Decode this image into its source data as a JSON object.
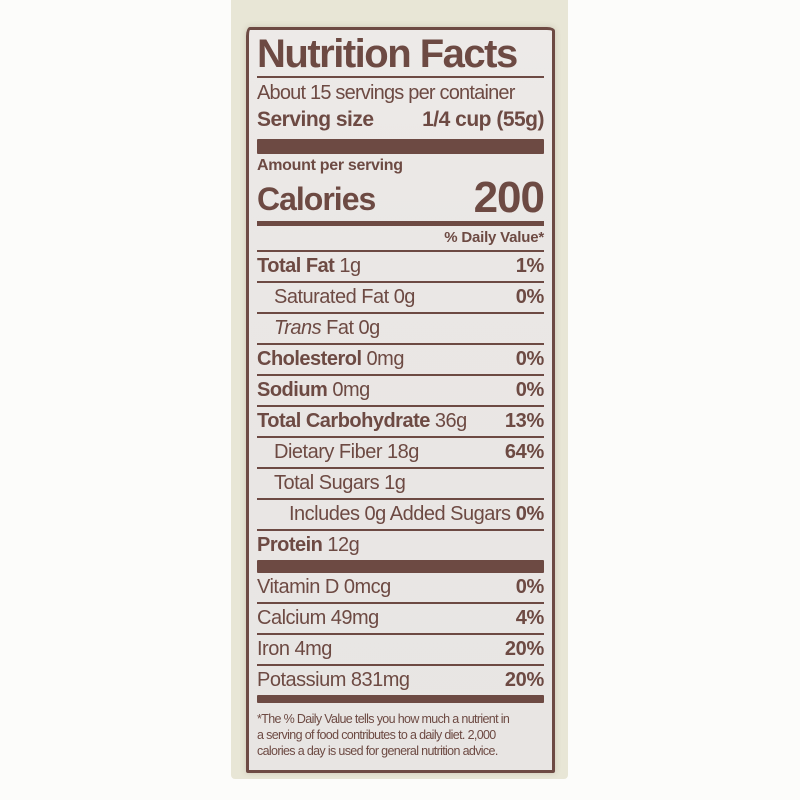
{
  "label": {
    "title": "Nutrition Facts",
    "servings_per_container": "About 15 servings per container",
    "serving_size_label": "Serving size",
    "serving_size_value": "1/4 cup (55g)",
    "amount_per_serving": "Amount per serving",
    "calories_label": "Calories",
    "calories_value": "200",
    "daily_value_header": "% Daily Value*",
    "nutrients": [
      {
        "name": "Total Fat",
        "amount": "1g",
        "dv": "1%",
        "bold": true,
        "indent": 0
      },
      {
        "name": "Saturated Fat",
        "amount": "0g",
        "dv": "0%",
        "bold": false,
        "indent": 1
      },
      {
        "name_italic": "Trans",
        "name": "Fat",
        "amount": "0g",
        "dv": "",
        "bold": false,
        "indent": 1
      },
      {
        "name": "Cholesterol",
        "amount": "0mg",
        "dv": "0%",
        "bold": true,
        "indent": 0
      },
      {
        "name": "Sodium",
        "amount": "0mg",
        "dv": "0%",
        "bold": true,
        "indent": 0
      },
      {
        "name": "Total Carbohydrate",
        "amount": "36g",
        "dv": "13%",
        "bold": true,
        "indent": 0
      },
      {
        "name": "Dietary Fiber",
        "amount": "18g",
        "dv": "64%",
        "bold": false,
        "indent": 1
      },
      {
        "name": "Total Sugars",
        "amount": "1g",
        "dv": "",
        "bold": false,
        "indent": 1
      },
      {
        "name": "Includes 0g Added Sugars",
        "amount": "",
        "dv": "0%",
        "bold": false,
        "indent": 2
      },
      {
        "name": "Protein",
        "amount": "12g",
        "dv": "",
        "bold": true,
        "indent": 0
      }
    ],
    "micronutrients": [
      {
        "name": "Vitamin D",
        "amount": "0mcg",
        "dv": "0%",
        "bold": false,
        "indent": 0
      },
      {
        "name": "Calcium",
        "amount": "49mg",
        "dv": "4%",
        "bold": false,
        "indent": 0
      },
      {
        "name": "Iron",
        "amount": "4mg",
        "dv": "20%",
        "bold": false,
        "indent": 0
      },
      {
        "name": "Potassium",
        "amount": "831mg",
        "dv": "20%",
        "bold": false,
        "indent": 0
      }
    ],
    "footnote_lines": [
      "*The % Daily Value tells you how much a nutrient in",
      "a serving of food contributes to a daily diet. 2,000",
      "calories a day is used for general nutrition advice."
    ]
  },
  "colors": {
    "ink": "#6d4a43",
    "label_background": "#eae7e5",
    "package_background": "#e8e6d6",
    "page_background": "#fcfcfa"
  }
}
